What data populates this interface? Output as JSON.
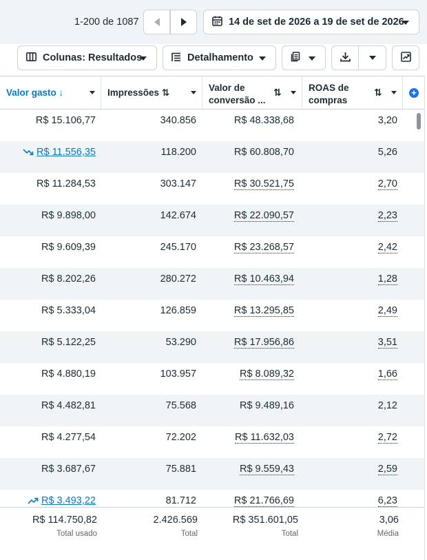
{
  "pagination": {
    "range": "1-200 de 1087"
  },
  "date_range": {
    "label": "14 de set de 2026 a 19 de set de 2026"
  },
  "toolbar": {
    "columns_label": "Colunas: Resultados",
    "breakdown_label": "Detalhamento"
  },
  "columns": {
    "spend": "Valor gasto",
    "impressions": "Impressões",
    "conv_line1": "Valor de",
    "conv_line2": "conversão ...",
    "roas_line1": "ROAS de",
    "roas_line2": "compras"
  },
  "rows": [
    {
      "spend": "R$ 15.106,77",
      "impressions": "340.856",
      "conversion": "R$ 48.338,68",
      "roas": "3,20",
      "trend": ""
    },
    {
      "spend": "R$ 11.556,35",
      "impressions": "118.200",
      "conversion": "R$ 60.808,70",
      "roas": "5,26",
      "trend": "down"
    },
    {
      "spend": "R$ 11.284,53",
      "impressions": "303.147",
      "conversion": "R$ 30.521,75",
      "roas": "2,70",
      "trend": ""
    },
    {
      "spend": "R$ 9.898,00",
      "impressions": "142.674",
      "conversion": "R$ 22.090,57",
      "roas": "2,23",
      "trend": ""
    },
    {
      "spend": "R$ 9.609,39",
      "impressions": "245.170",
      "conversion": "R$ 23.268,57",
      "roas": "2,42",
      "trend": ""
    },
    {
      "spend": "R$ 8.202,26",
      "impressions": "280.272",
      "conversion": "R$ 10.463,94",
      "roas": "1,28",
      "trend": ""
    },
    {
      "spend": "R$ 5.333,04",
      "impressions": "126.859",
      "conversion": "R$ 13.295,85",
      "roas": "2,49",
      "trend": ""
    },
    {
      "spend": "R$ 5.122,25",
      "impressions": "53.290",
      "conversion": "R$ 17.956,86",
      "roas": "3,51",
      "trend": ""
    },
    {
      "spend": "R$ 4.880,19",
      "impressions": "103.957",
      "conversion": "R$ 8.089,32",
      "roas": "1,66",
      "trend": ""
    },
    {
      "spend": "R$ 4.482,81",
      "impressions": "75.568",
      "conversion": "R$ 9.489,16",
      "roas": "2,12",
      "trend": ""
    },
    {
      "spend": "R$ 4.277,54",
      "impressions": "72.202",
      "conversion": "R$ 11.632,03",
      "roas": "2,72",
      "trend": ""
    },
    {
      "spend": "R$ 3.687,67",
      "impressions": "75.881",
      "conversion": "R$ 9.559,43",
      "roas": "2,59",
      "trend": ""
    },
    {
      "spend": "R$ 3.493,22",
      "impressions": "81.712",
      "conversion": "R$ 21.766,69",
      "roas": "6,23",
      "trend": "up"
    }
  ],
  "totals": {
    "spend": "R$ 114.750,82",
    "spend_sub": "Total usado",
    "impressions": "2.426.569",
    "impressions_sub": "Total",
    "conversion": "R$ 351.601,05",
    "conversion_sub": "Total",
    "roas": "3,06",
    "roas_sub": "Média"
  },
  "colors": {
    "accent": "#0a78be",
    "alt_row": "#f1f4f7",
    "border": "#cbd2d9"
  }
}
